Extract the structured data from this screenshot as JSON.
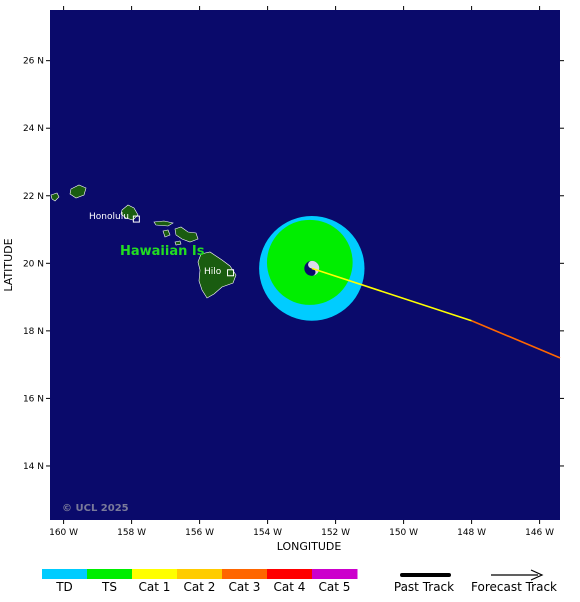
{
  "map": {
    "background_color": "#0a0a6b",
    "land_color": "#1a5c10",
    "x_axis": {
      "title": "LONGITUDE",
      "range_deg_w": [
        160.4,
        145.4
      ],
      "ticks": [
        {
          "value": 160,
          "label": "160 W"
        },
        {
          "value": 158,
          "label": "158 W"
        },
        {
          "value": 156,
          "label": "156 W"
        },
        {
          "value": 154,
          "label": "154 W"
        },
        {
          "value": 152,
          "label": "152 W"
        },
        {
          "value": 150,
          "label": "150 W"
        },
        {
          "value": 148,
          "label": "148 W"
        },
        {
          "value": 146,
          "label": "146 W"
        }
      ]
    },
    "y_axis": {
      "title": "LATITUDE",
      "range_deg_n": [
        12.4,
        27.5
      ],
      "ticks": [
        {
          "value": 26,
          "label": "26 N"
        },
        {
          "value": 24,
          "label": "24 N"
        },
        {
          "value": 22,
          "label": "22 N"
        },
        {
          "value": 20,
          "label": "20 N"
        },
        {
          "value": 18,
          "label": "18 N"
        },
        {
          "value": 16,
          "label": "16 N"
        },
        {
          "value": 14,
          "label": "14 N"
        }
      ]
    },
    "labels": {
      "region": "Hawaiian Is",
      "region_color": "#22dd22",
      "honolulu": "Honolulu",
      "hilo": "Hilo",
      "copyright": "© UCL 2025"
    },
    "cities": [
      {
        "name": "Honolulu",
        "lon_w": 157.86,
        "lat_n": 21.31
      },
      {
        "name": "Hilo",
        "lon_w": 155.09,
        "lat_n": 19.72
      }
    ],
    "storm": {
      "center_lon_w": 152.7,
      "center_lat_n": 19.85,
      "td_wind_radius_deg": 1.55,
      "ts_wind_radius_deg": 1.26,
      "core_radius_deg": 0.22,
      "td_color": "#00ccff",
      "ts_color": "#00ee00"
    },
    "forecast_track": [
      {
        "lon_w": 152.7,
        "lat_n": 19.85,
        "color": "#ffff00"
      },
      {
        "lon_w": 148.0,
        "lat_n": 18.3,
        "color": "#ff6600"
      },
      {
        "lon_w": 145.4,
        "lat_n": 17.2,
        "color": "#ff6600"
      }
    ]
  },
  "legend": {
    "categories": [
      {
        "label": "TD",
        "color": "#00ccff"
      },
      {
        "label": "TS",
        "color": "#00ee00"
      },
      {
        "label": "Cat 1",
        "color": "#ffff00"
      },
      {
        "label": "Cat 2",
        "color": "#ffcc00"
      },
      {
        "label": "Cat 3",
        "color": "#ff6600"
      },
      {
        "label": "Cat 4",
        "color": "#ff0000"
      },
      {
        "label": "Cat 5",
        "color": "#cc00cc"
      }
    ],
    "past_track_label": "Past Track",
    "forecast_track_label": "Forecast Track"
  }
}
